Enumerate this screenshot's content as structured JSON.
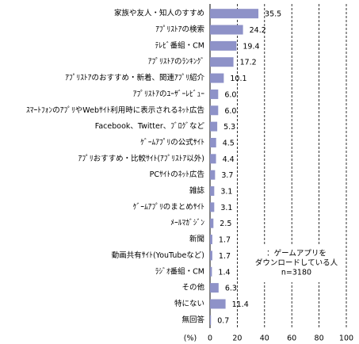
{
  "chart_data": {
    "type": "bar",
    "orientation": "horizontal",
    "categories": [
      "家族や友人・知人のすすめ",
      "ｱﾌﾟﾘｽﾄｱの検索",
      "ﾃﾚﾋﾞ番組・CM",
      "ｱﾌﾟﾘｽﾄｱのﾗﾝｷﾝｸﾞ",
      "ｱﾌﾟﾘｽﾄｱのおすすめ・新着、関連ｱﾌﾟﾘ紹介",
      "ｱﾌﾟﾘｽﾄｱのﾕｰｻﾞｰﾚﾋﾞｭｰ",
      "ｽﾏｰﾄﾌｫﾝのｱﾌﾟﾘやWebｻｲﾄ利用時に表示されるﾈｯﾄ広告",
      "Facebook、Twitter、ﾌﾞﾛｸﾞなど",
      "ｹﾞｰﾑｱﾌﾟﾘの公式ｻｲﾄ",
      "ｱﾌﾟﾘおすすめ・比較ｻｲﾄ(ｱﾌﾟﾘｽﾄｱ以外)",
      "PCｻｲﾄのﾈｯﾄ広告",
      "雑誌",
      "ｹﾞｰﾑｱﾌﾟﾘのまとめｻｲﾄ",
      "ﾒｰﾙﾏｶﾞｼﾞﾝ",
      "新聞",
      "動画共有ｻｲﾄ(YouTubeなど)",
      "ﾗｼﾞｵ番組・CM",
      "その他",
      "特にない",
      "無回答"
    ],
    "values": [
      35.5,
      24.2,
      19.4,
      17.2,
      10.1,
      6.0,
      6.0,
      5.3,
      4.5,
      4.4,
      3.7,
      3.1,
      3.1,
      2.5,
      1.7,
      1.7,
      1.4,
      6.3,
      11.4,
      0.7
    ],
    "value_labels": [
      "35.5",
      "24.2",
      "19.4",
      "17.2",
      "10.1",
      "6.0",
      "6.0",
      "5.3",
      "4.5",
      "4.4",
      "3.7",
      "3.1",
      "3.1",
      "2.5",
      "1.7",
      "1.7",
      "1.4",
      "6.3",
      "11.4",
      "0.7"
    ],
    "color": "#8e92c8",
    "xlabel": "(%)",
    "xlim": [
      0,
      100
    ],
    "xticks": [
      0,
      20,
      40,
      60,
      80,
      100
    ],
    "grid": true,
    "annotation": [
      "：ゲームアプリを",
      "ダウンロードしている人",
      "n=3180"
    ]
  }
}
